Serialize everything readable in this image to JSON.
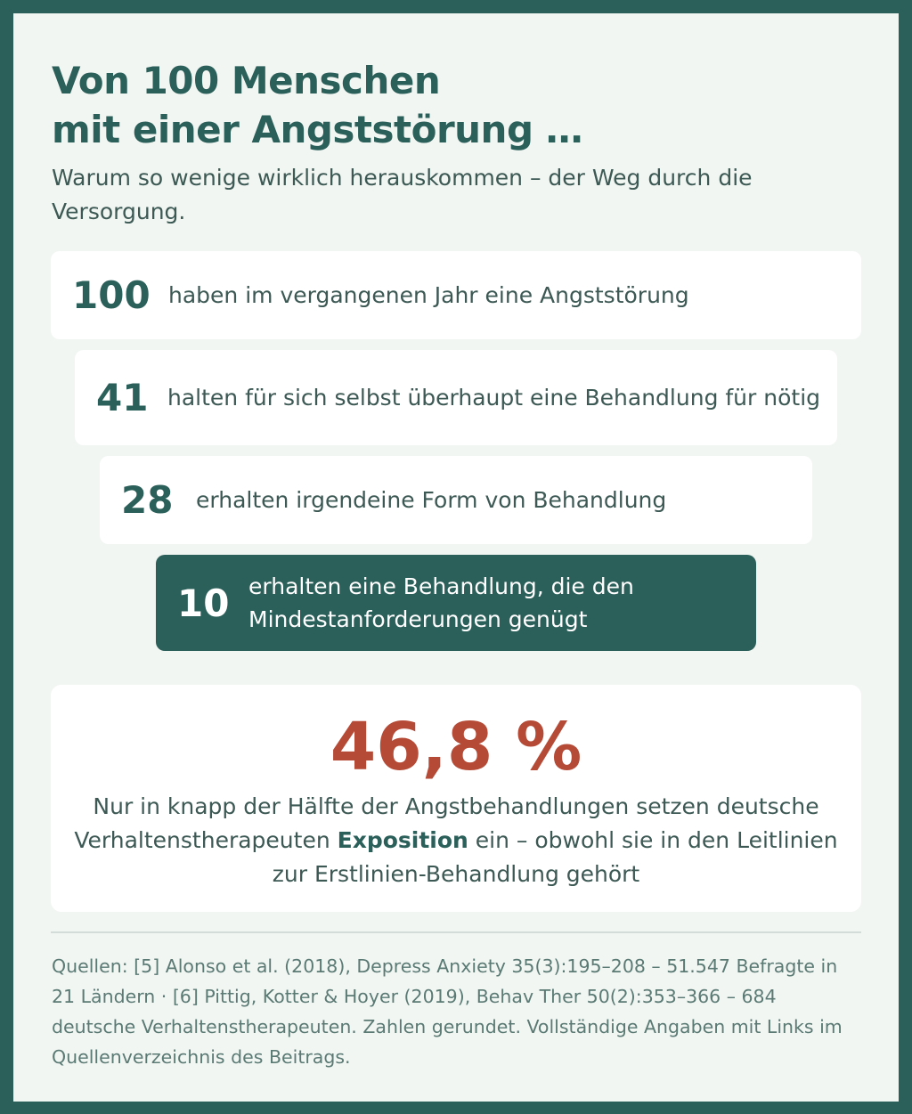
{
  "header": {
    "title_line1": "Von 100 Menschen",
    "title_line2": "mit einer Angststörung …",
    "subtitle": "Warum so wenige wirklich herauskommen – der Weg durch die Versorgung."
  },
  "funnel": [
    {
      "value": "100",
      "label": "haben im vergangenen Jahr eine Angststörung"
    },
    {
      "value": "41",
      "label": "halten für sich selbst überhaupt eine Behandlung für nötig"
    },
    {
      "value": "28",
      "label": "erhalten irgendeine Form von Behandlung"
    },
    {
      "value": "10",
      "label": "erhalten eine Behandlung, die den Mindestanforderungen genügt"
    }
  ],
  "stat": {
    "value": "46,8 %",
    "text_before": "Nur in knapp der Hälfte der Angstbehandlungen setzen deutsche Verhaltenstherapeuten ",
    "emphasis": "Exposition",
    "text_after": " ein – obwohl sie in den Leitlinien zur Erstlinien-Behandlung gehört"
  },
  "sources": "Quellen: [5] Alonso et al. (2018), Depress Anxiety 35(3):195–208 – 51.547 Befragte in 21 Ländern · [6] Pittig, Kotter & Hoyer (2019), Behav Ther 50(2):353–366 – 684 deutsche Verhaltenstherapeuten. Zahlen gerundet. Vollständige Angaben mit Links im Quellenverzeichnis des Beitrags.",
  "colors": {
    "frame": "#2b5f59",
    "background": "#f2f6f3",
    "accent": "#b54a36",
    "text": "#3d5954"
  }
}
